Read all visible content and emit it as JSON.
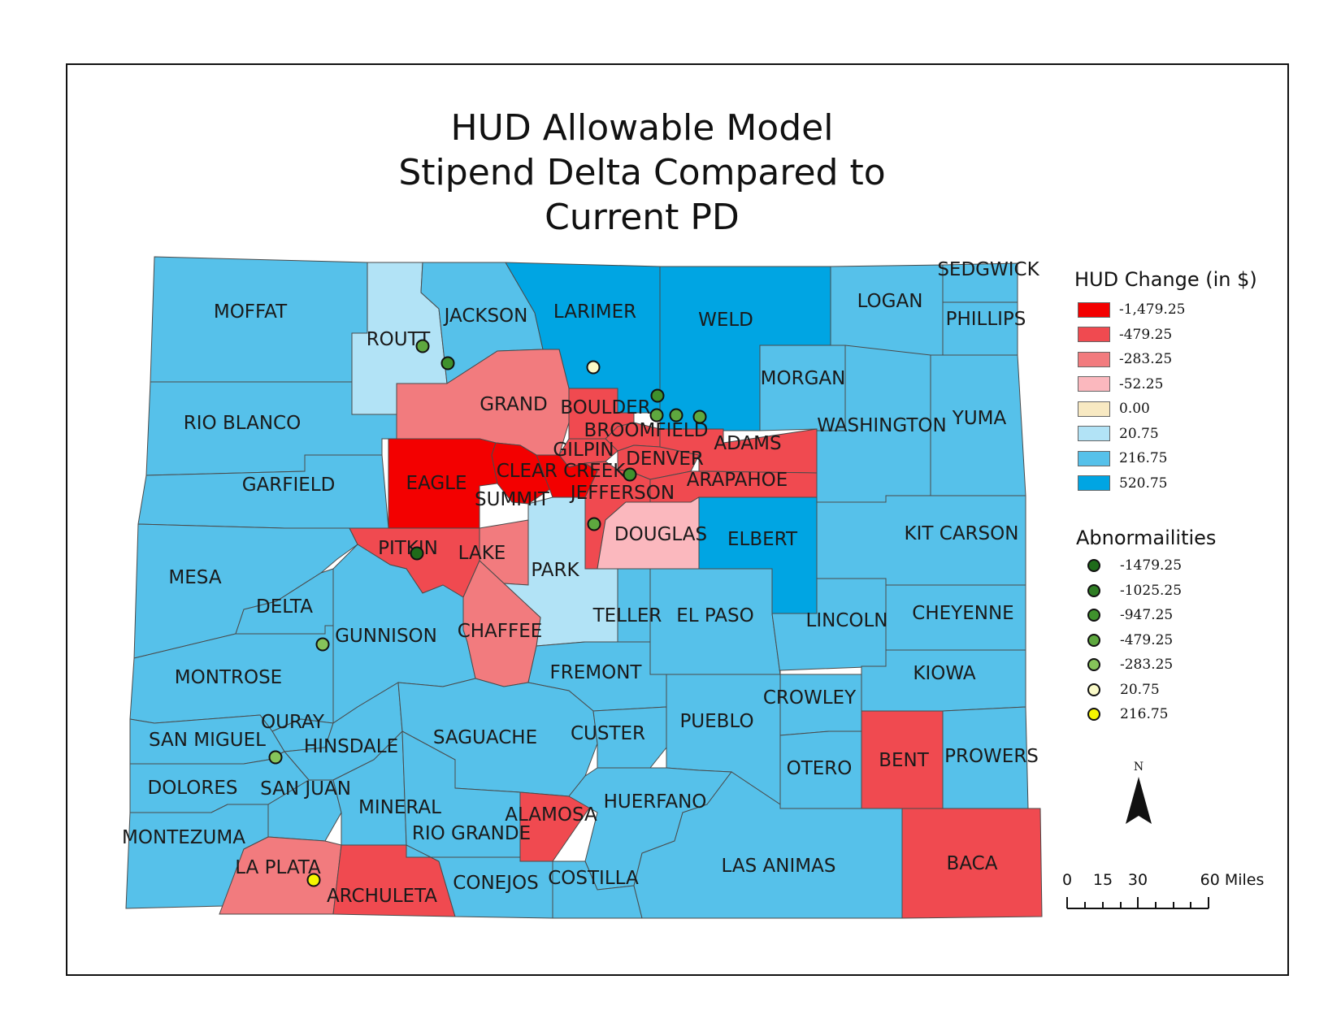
{
  "title": [
    "HUD Allowable Model",
    "Stipend Delta Compared to",
    "Current PD"
  ],
  "colors": {
    "c520": "#00a5e3",
    "c216": "#56c1ea",
    "c20": "#b2e3f6",
    "c0": "#f8e9c2",
    "cm52": "#fbb8be",
    "cm283": "#f27b7e",
    "cm479": "#f04a50",
    "cm1479": "#f30000"
  },
  "legend": {
    "title": "HUD Change (in $)",
    "items": [
      {
        "label": "-1,479.25",
        "color": "#f30000"
      },
      {
        "label": "-479.25",
        "color": "#f04a50"
      },
      {
        "label": "-283.25",
        "color": "#f27b7e"
      },
      {
        "label": "-52.25",
        "color": "#fbb8be"
      },
      {
        "label": "0.00",
        "color": "#f8e9c2"
      },
      {
        "label": "20.75",
        "color": "#b2e3f6"
      },
      {
        "label": "216.75",
        "color": "#56c1ea"
      },
      {
        "label": "520.75",
        "color": "#00a5e3"
      }
    ]
  },
  "abnormalities": {
    "title": "Abnormailities",
    "items": [
      {
        "label": "-1479.25",
        "color": "#1f6b1a"
      },
      {
        "label": "-1025.25",
        "color": "#2f7d24"
      },
      {
        "label": "-947.25",
        "color": "#3f912d"
      },
      {
        "label": "-479.25",
        "color": "#5ea83f"
      },
      {
        "label": "-283.25",
        "color": "#86c45a"
      },
      {
        "label": "20.75",
        "color": "#fafac8"
      },
      {
        "label": "216.75",
        "color": "#f5f500"
      }
    ]
  },
  "counties": [
    {
      "name": "MOFFAT",
      "color": "c216"
    },
    {
      "name": "ROUTT",
      "color": "c20"
    },
    {
      "name": "JACKSON",
      "color": "c216"
    },
    {
      "name": "LARIMER",
      "color": "c520"
    },
    {
      "name": "WELD",
      "color": "c520"
    },
    {
      "name": "LOGAN",
      "color": "c216"
    },
    {
      "name": "SEDGWICK",
      "color": "c216"
    },
    {
      "name": "PHILLIPS",
      "color": "c216"
    },
    {
      "name": "RIO BLANCO",
      "color": "c216"
    },
    {
      "name": "GRAND",
      "color": "cm283"
    },
    {
      "name": "BOULDER",
      "color": "cm479"
    },
    {
      "name": "BROOMFIELD",
      "color": "cm479"
    },
    {
      "name": "MORGAN",
      "color": "c216"
    },
    {
      "name": "WASHINGTON",
      "color": "c216"
    },
    {
      "name": "YUMA",
      "color": "c216"
    },
    {
      "name": "GARFIELD",
      "color": "c216"
    },
    {
      "name": "EAGLE",
      "color": "cm1479"
    },
    {
      "name": "SUMMIT",
      "color": "cm1479"
    },
    {
      "name": "GILPIN",
      "color": "cm479"
    },
    {
      "name": "CLEAR CREEK",
      "color": "cm1479"
    },
    {
      "name": "DENVER",
      "color": "cm479"
    },
    {
      "name": "ADAMS",
      "color": "cm479"
    },
    {
      "name": "ARAPAHOE",
      "color": "cm479"
    },
    {
      "name": "JEFFERSON",
      "color": "cm479"
    },
    {
      "name": "DOUGLAS",
      "color": "cm52"
    },
    {
      "name": "ELBERT",
      "color": "c520"
    },
    {
      "name": "KIT CARSON",
      "color": "c216"
    },
    {
      "name": "MESA",
      "color": "c216"
    },
    {
      "name": "PITKIN",
      "color": "cm479"
    },
    {
      "name": "LAKE",
      "color": "cm283"
    },
    {
      "name": "PARK",
      "color": "c20"
    },
    {
      "name": "DELTA",
      "color": "c216"
    },
    {
      "name": "GUNNISON",
      "color": "c216"
    },
    {
      "name": "CHAFFEE",
      "color": "cm283"
    },
    {
      "name": "TELLER",
      "color": "c216"
    },
    {
      "name": "EL PASO",
      "color": "c216"
    },
    {
      "name": "LINCOLN",
      "color": "c216"
    },
    {
      "name": "CHEYENNE",
      "color": "c216"
    },
    {
      "name": "MONTROSE",
      "color": "c216"
    },
    {
      "name": "FREMONT",
      "color": "c216"
    },
    {
      "name": "KIOWA",
      "color": "c216"
    },
    {
      "name": "OURAY",
      "color": "c216"
    },
    {
      "name": "SAN MIGUEL",
      "color": "c216"
    },
    {
      "name": "HINSDALE",
      "color": "c216"
    },
    {
      "name": "SAGUACHE",
      "color": "c216"
    },
    {
      "name": "CUSTER",
      "color": "c216"
    },
    {
      "name": "PUEBLO",
      "color": "c216"
    },
    {
      "name": "CROWLEY",
      "color": "c216"
    },
    {
      "name": "OTERO",
      "color": "c216"
    },
    {
      "name": "BENT",
      "color": "cm479"
    },
    {
      "name": "PROWERS",
      "color": "c216"
    },
    {
      "name": "DOLORES",
      "color": "c216"
    },
    {
      "name": "SAN JUAN",
      "color": "c216"
    },
    {
      "name": "MINERAL",
      "color": "c216"
    },
    {
      "name": "RIO GRANDE",
      "color": "c216"
    },
    {
      "name": "ALAMOSA",
      "color": "cm479"
    },
    {
      "name": "HUERFANO",
      "color": "c216"
    },
    {
      "name": "MONTEZUMA",
      "color": "c216"
    },
    {
      "name": "LA PLATA",
      "color": "cm283"
    },
    {
      "name": "ARCHULETA",
      "color": "cm479"
    },
    {
      "name": "CONEJOS",
      "color": "c216"
    },
    {
      "name": "COSTILLA",
      "color": "c216"
    },
    {
      "name": "LAS ANIMAS",
      "color": "c216"
    },
    {
      "name": "BACA",
      "color": "cm479"
    }
  ],
  "markers": [
    {
      "county": "ROUTT",
      "value": "-479.25"
    },
    {
      "county": "ROUTT",
      "value": "-947.25"
    },
    {
      "county": "LARIMER",
      "value": "20.75"
    },
    {
      "county": "BOULDER",
      "value": "-947.25"
    },
    {
      "county": "BOULDER",
      "value": "-479.25"
    },
    {
      "county": "WELD",
      "value": "-479.25"
    },
    {
      "county": "WELD",
      "value": "-479.25"
    },
    {
      "county": "DENVER",
      "value": "-947.25"
    },
    {
      "county": "DOUGLAS",
      "value": "-479.25"
    },
    {
      "county": "PITKIN",
      "value": "-1479.25"
    },
    {
      "county": "GUNNISON",
      "value": "-283.25"
    },
    {
      "county": "SAN MIGUEL",
      "value": "-283.25"
    },
    {
      "county": "LA PLATA",
      "value": "216.75"
    }
  ],
  "north": {
    "label": "N"
  },
  "scale": {
    "labels": [
      "0",
      "15",
      "30",
      "60 Miles"
    ]
  }
}
